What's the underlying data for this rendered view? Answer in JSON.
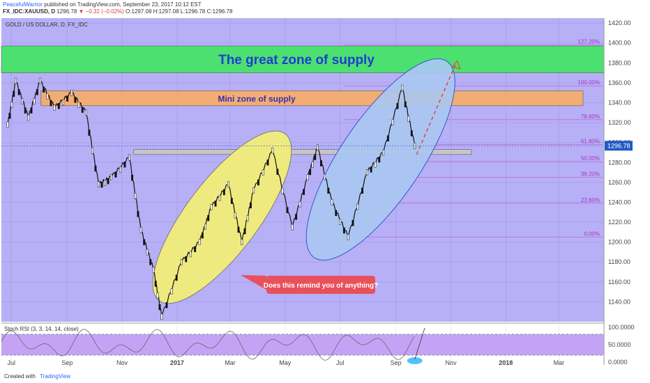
{
  "header": {
    "author": "PeacefulWarrior",
    "published": "published on TradingView.com, September 23, 2017 10:12 EST",
    "symbol": "FX_IDC:XAUUSD, D",
    "last": "1296.78",
    "change": "▼ −0.32 (−0.02%)",
    "ohlc": "O:1297.08 H:1297.08 L:1296.78 C:1296.78"
  },
  "footer": {
    "created_with": "Created with",
    "brand": "TradingView"
  },
  "chart_data": {
    "type": "line",
    "title": "GOLD / US DOLLAR, D, FX_IDC",
    "x_ticks": [
      "Jul",
      "Sep",
      "Nov",
      "2017",
      "Mar",
      "May",
      "Jul",
      "Sep",
      "Nov",
      "2018",
      "Mar"
    ],
    "y_ticks": [
      1140,
      1160,
      1180,
      1200,
      1220,
      1240,
      1260,
      1280,
      1300,
      1320,
      1340,
      1360,
      1380,
      1400,
      1420
    ],
    "ylim": [
      1120,
      1425
    ],
    "last_price_label": "1296.78",
    "series": [
      {
        "x": [
          "2016-06-27",
          "2016-07-06",
          "2016-07-20",
          "2016-08-02",
          "2016-08-18",
          "2016-09-06",
          "2016-09-22",
          "2016-10-06",
          "2016-10-20",
          "2016-11-09",
          "2016-11-22",
          "2016-12-06",
          "2016-12-15",
          "2017-01-06",
          "2017-01-26",
          "2017-02-08",
          "2017-02-27",
          "2017-03-14",
          "2017-03-27",
          "2017-04-17",
          "2017-05-09",
          "2017-05-26",
          "2017-06-06",
          "2017-06-22",
          "2017-07-10",
          "2017-07-31",
          "2017-08-18",
          "2017-09-08",
          "2017-09-22"
        ],
        "values": [
          1318,
          1362,
          1325,
          1362,
          1335,
          1350,
          1330,
          1258,
          1265,
          1285,
          1212,
          1172,
          1125,
          1180,
          1200,
          1235,
          1258,
          1200,
          1252,
          1292,
          1215,
          1265,
          1295,
          1240,
          1205,
          1270,
          1290,
          1355,
          1296.78
        ]
      }
    ],
    "zones": [
      {
        "label": "The great zone of supply",
        "from": 1370,
        "to": 1397
      },
      {
        "label": "Mini zone of supply",
        "from": 1337,
        "to": 1352
      },
      {
        "label": "",
        "from": 1288,
        "to": 1293
      }
    ],
    "fib_levels": [
      {
        "label": "0.00%",
        "value": 1205
      },
      {
        "label": "23.60%",
        "value": 1239
      },
      {
        "label": "38.20%",
        "value": 1265
      },
      {
        "label": "50.00%",
        "value": 1281
      },
      {
        "label": "61.80%",
        "value": 1298
      },
      {
        "label": "78.60%",
        "value": 1323
      },
      {
        "label": "100.00%",
        "value": 1357
      },
      {
        "label": "127.20%",
        "value": 1398
      }
    ],
    "annotation": "Does this remind you of anything?",
    "indicator": {
      "label": "Stoch RSI (3, 3, 14, 14, close)",
      "y_ticks": [
        "100.0000",
        "50.0000",
        "0.0000"
      ],
      "band": [
        20,
        80
      ]
    }
  }
}
